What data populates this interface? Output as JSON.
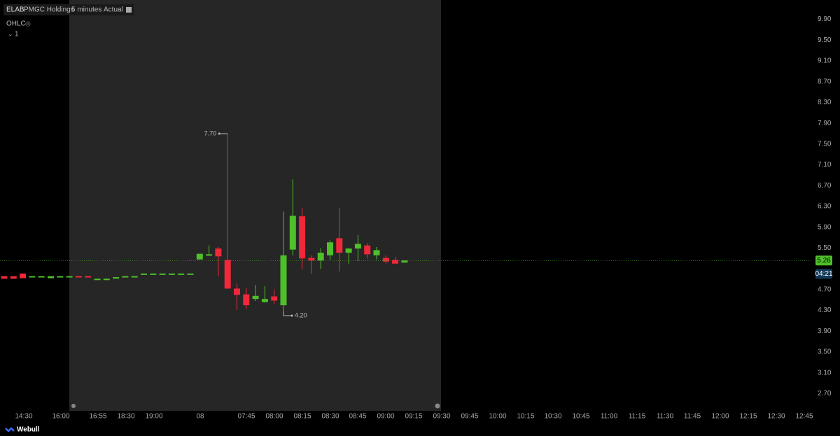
{
  "header": {
    "symbol": "ELAB",
    "name": "PMGC Holdings",
    "interval": "5 minutes",
    "mode": "Actual",
    "indicator": "OHLC",
    "pane": "1"
  },
  "footer": {
    "brand": "Webull"
  },
  "chart_data": {
    "type": "candlestick",
    "up_color": "#4fbf2a",
    "down_color": "#f0283a",
    "ylim": [
      2.45,
      10.15
    ],
    "yticks": [
      {
        "value": 9.9,
        "label": "9.90"
      },
      {
        "value": 9.5,
        "label": "9.50"
      },
      {
        "value": 9.1,
        "label": "9.10"
      },
      {
        "value": 8.7,
        "label": "8.70"
      },
      {
        "value": 8.3,
        "label": "8.30"
      },
      {
        "value": 7.9,
        "label": "7.90"
      },
      {
        "value": 7.5,
        "label": "7.50"
      },
      {
        "value": 7.1,
        "label": "7.10"
      },
      {
        "value": 6.7,
        "label": "6.70"
      },
      {
        "value": 6.3,
        "label": "6.30"
      },
      {
        "value": 5.9,
        "label": "5.90"
      },
      {
        "value": 5.5,
        "label": "5.50"
      },
      {
        "value": 4.7,
        "label": "4.70"
      },
      {
        "value": 4.3,
        "label": "4.30"
      },
      {
        "value": 3.9,
        "label": "3.90"
      },
      {
        "value": 3.5,
        "label": "3.50"
      },
      {
        "value": 3.1,
        "label": "3.10"
      },
      {
        "value": 2.7,
        "label": "2.70"
      }
    ],
    "x_labels": [
      "14:30",
      "16:00",
      "16:55",
      "18:30",
      "19:00",
      "08",
      "07:45",
      "08:00",
      "08:15",
      "08:30",
      "08:45",
      "09:00",
      "09:15",
      "09:30",
      "09:45",
      "10:00",
      "10:15",
      "10:30",
      "10:45",
      "11:00",
      "11:15",
      "11:30",
      "11:45",
      "12:00",
      "12:15",
      "12:30",
      "12:45"
    ],
    "candles": [
      {
        "open": 4.96,
        "high": 4.96,
        "low": 4.91,
        "close": 4.91
      },
      {
        "open": 4.96,
        "high": 4.96,
        "low": 4.91,
        "close": 4.91
      },
      {
        "open": 5.01,
        "high": 5.01,
        "low": 4.92,
        "close": 4.92
      },
      {
        "open": 4.95,
        "high": 4.96,
        "low": 4.95,
        "close": 4.96
      },
      {
        "open": 4.95,
        "high": 4.96,
        "low": 4.95,
        "close": 4.96
      },
      {
        "open": 4.92,
        "high": 4.96,
        "low": 4.92,
        "close": 4.96
      },
      {
        "open": 4.95,
        "high": 4.96,
        "low": 4.95,
        "close": 4.96
      },
      {
        "open": 4.95,
        "high": 4.96,
        "low": 4.95,
        "close": 4.96
      },
      {
        "open": 4.96,
        "high": 4.96,
        "low": 4.95,
        "close": 4.95
      },
      {
        "open": 4.96,
        "high": 4.96,
        "low": 4.95,
        "close": 4.95
      },
      {
        "open": 4.9,
        "high": 4.91,
        "low": 4.9,
        "close": 4.91
      },
      {
        "open": 4.9,
        "high": 4.91,
        "low": 4.9,
        "close": 4.91
      },
      {
        "open": 4.93,
        "high": 4.94,
        "low": 4.93,
        "close": 4.94
      },
      {
        "open": 4.95,
        "high": 4.96,
        "low": 4.95,
        "close": 4.96
      },
      {
        "open": 4.95,
        "high": 4.96,
        "low": 4.95,
        "close": 4.96
      },
      {
        "open": 5.0,
        "high": 5.01,
        "low": 5.0,
        "close": 5.01
      },
      {
        "open": 5.0,
        "high": 5.01,
        "low": 5.0,
        "close": 5.01
      },
      {
        "open": 5.0,
        "high": 5.01,
        "low": 5.0,
        "close": 5.01
      },
      {
        "open": 5.0,
        "high": 5.01,
        "low": 5.0,
        "close": 5.01
      },
      {
        "open": 5.0,
        "high": 5.01,
        "low": 5.0,
        "close": 5.01
      },
      {
        "open": 5.0,
        "high": 5.01,
        "low": 5.0,
        "close": 5.01
      },
      {
        "open": 5.28,
        "high": 5.39,
        "low": 5.28,
        "close": 5.39
      },
      {
        "open": 5.36,
        "high": 5.55,
        "low": 5.35,
        "close": 5.38
      },
      {
        "open": 5.49,
        "high": 5.52,
        "low": 4.96,
        "close": 5.34
      },
      {
        "open": 5.27,
        "high": 7.7,
        "low": 4.72,
        "close": 4.72
      },
      {
        "open": 4.72,
        "high": 4.82,
        "low": 4.31,
        "close": 4.6
      },
      {
        "open": 4.61,
        "high": 4.74,
        "low": 4.32,
        "close": 4.4
      },
      {
        "open": 4.52,
        "high": 4.79,
        "low": 4.48,
        "close": 4.58
      },
      {
        "open": 4.46,
        "high": 4.77,
        "low": 4.45,
        "close": 4.52
      },
      {
        "open": 4.57,
        "high": 4.7,
        "low": 4.42,
        "close": 4.49
      },
      {
        "open": 4.4,
        "high": 6.2,
        "low": 4.2,
        "close": 5.36
      },
      {
        "open": 5.47,
        "high": 6.82,
        "low": 5.36,
        "close": 6.12
      },
      {
        "open": 6.11,
        "high": 6.28,
        "low": 5.1,
        "close": 5.3
      },
      {
        "open": 5.31,
        "high": 5.36,
        "low": 5.0,
        "close": 5.26
      },
      {
        "open": 5.26,
        "high": 5.5,
        "low": 5.1,
        "close": 5.41
      },
      {
        "open": 5.36,
        "high": 5.65,
        "low": 5.27,
        "close": 5.61
      },
      {
        "open": 5.69,
        "high": 6.27,
        "low": 5.05,
        "close": 5.41
      },
      {
        "open": 5.41,
        "high": 5.5,
        "low": 5.2,
        "close": 5.49
      },
      {
        "open": 5.49,
        "high": 5.75,
        "low": 5.25,
        "close": 5.58
      },
      {
        "open": 5.55,
        "high": 5.6,
        "low": 5.3,
        "close": 5.38
      },
      {
        "open": 5.36,
        "high": 5.52,
        "low": 5.28,
        "close": 5.46
      },
      {
        "open": 5.31,
        "high": 5.36,
        "low": 5.2,
        "close": 5.24
      },
      {
        "open": 5.27,
        "high": 5.33,
        "low": 5.2,
        "close": 5.2
      },
      {
        "open": 5.22,
        "high": 5.26,
        "low": 5.22,
        "close": 5.26
      }
    ],
    "annotations": [
      {
        "value": 7.7,
        "label": "7.70"
      },
      {
        "value": 4.2,
        "label": "4.20"
      }
    ],
    "last_price": 5.26,
    "countdown": "04:21"
  }
}
